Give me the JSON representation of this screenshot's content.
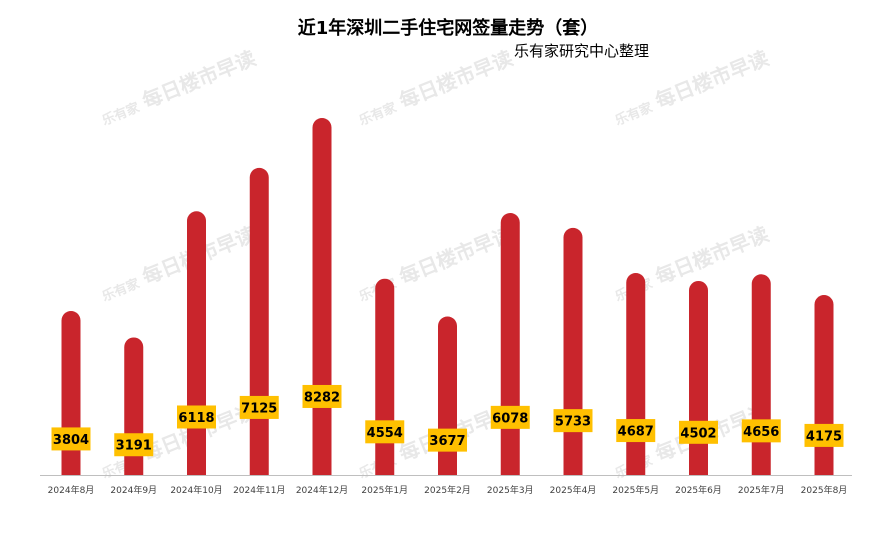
{
  "chart_data": {
    "type": "bar",
    "title": "近1年深圳二手住宅网签量走势（套）",
    "subtitle": "乐有家研究中心整理",
    "categories": [
      "2024年8月",
      "2024年9月",
      "2024年10月",
      "2024年11月",
      "2024年12月",
      "2025年1月",
      "2025年2月",
      "2025年3月",
      "2025年4月",
      "2025年5月",
      "2025年6月",
      "2025年7月",
      "2025年8月"
    ],
    "values": [
      3804,
      3191,
      6118,
      7125,
      8282,
      4554,
      3677,
      6078,
      5733,
      4687,
      4502,
      4656,
      4175
    ],
    "ylim": [
      0,
      8282
    ],
    "grid": false,
    "legend": "none",
    "colors": {
      "bar": "#c9252c",
      "label_bg": "#ffc000",
      "axis": "#bfbfbf"
    }
  },
  "watermark": {
    "logo": "乐有家",
    "text": "每日楼市早读"
  }
}
